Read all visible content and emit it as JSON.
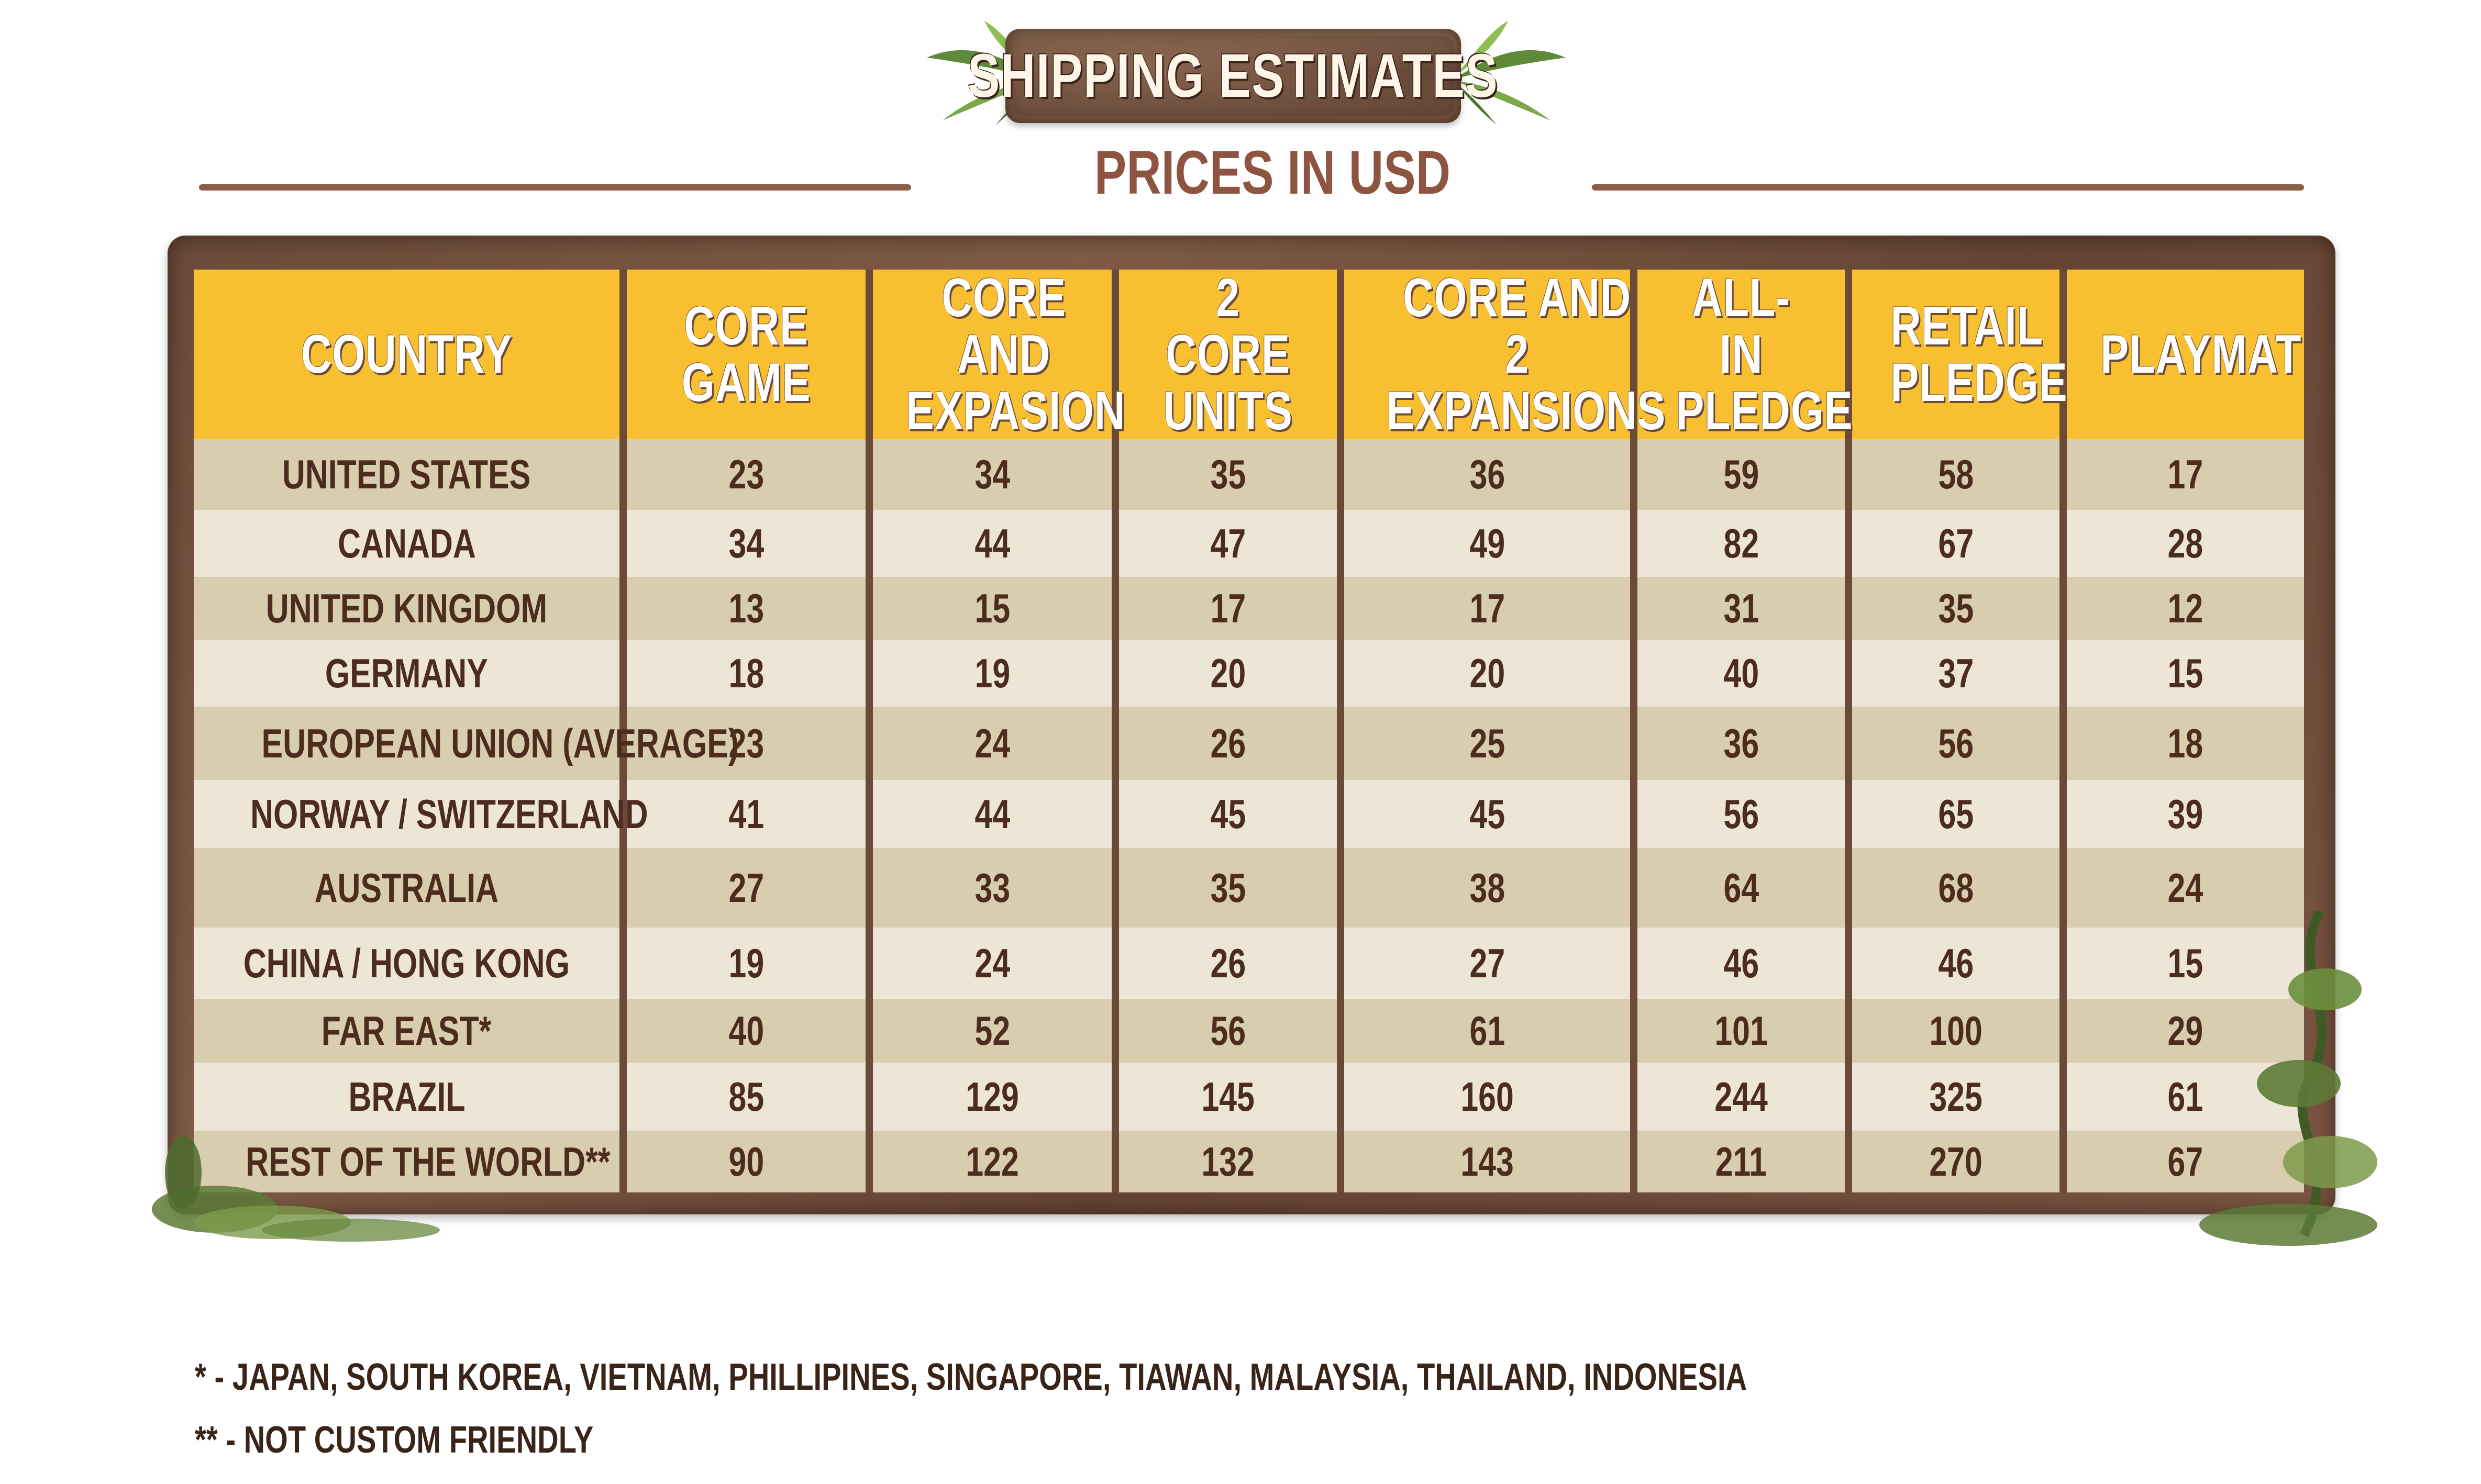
{
  "banner": {
    "title": "SHIPPING ESTIMATES"
  },
  "subtitle": "PRICES IN USD",
  "table": {
    "headers": [
      "COUNTRY",
      "CORE GAME",
      "CORE AND EXPASION",
      "2 CORE UNITS",
      "CORE AND 2 EXPANSIONS",
      "ALL-IN PLEDGE",
      "RETAIL PLEDGE",
      "PLAYMAT"
    ],
    "rows": [
      [
        "UNITED STATES",
        "23",
        "34",
        "35",
        "36",
        "59",
        "58",
        "17"
      ],
      [
        "CANADA",
        "34",
        "44",
        "47",
        "49",
        "82",
        "67",
        "28"
      ],
      [
        "UNITED KINGDOM",
        "13",
        "15",
        "17",
        "17",
        "31",
        "35",
        "12"
      ],
      [
        "GERMANY",
        "18",
        "19",
        "20",
        "20",
        "40",
        "37",
        "15"
      ],
      [
        "EUROPEAN UNION (AVERAGE)",
        "23",
        "24",
        "26",
        "25",
        "36",
        "56",
        "18"
      ],
      [
        "NORWAY / SWITZERLAND",
        "41",
        "44",
        "45",
        "45",
        "56",
        "65",
        "39"
      ],
      [
        "AUSTRALIA",
        "27",
        "33",
        "35",
        "38",
        "64",
        "68",
        "24"
      ],
      [
        "CHINA / HONG KONG",
        "19",
        "24",
        "26",
        "27",
        "46",
        "46",
        "15"
      ],
      [
        "FAR EAST*",
        "40",
        "52",
        "56",
        "61",
        "101",
        "100",
        "29"
      ],
      [
        "BRAZIL",
        "85",
        "129",
        "145",
        "160",
        "244",
        "325",
        "61"
      ],
      [
        "REST OF THE WORLD**",
        "90",
        "122",
        "132",
        "143",
        "211",
        "270",
        "67"
      ]
    ]
  },
  "footnotes": {
    "note1": "* - JAPAN, SOUTH KOREA, VIETNAM, PHILLIPINES, SINGAPORE, TIAWAN, MALAYSIA, THAILAND, INDONESIA",
    "note2": "** - NOT CUSTOM FRIENDLY"
  },
  "colors": {
    "header_yellow": "#f8c030",
    "frame_brown": "#6b4a39",
    "row_dark": "#d9cdb0",
    "row_light": "#ede5d6",
    "subtitle_brown": "#8d5541"
  },
  "icons": {
    "banner_left": "leaves-icon",
    "banner_right": "leaves-icon",
    "frame_decoration": "vine-icon"
  }
}
